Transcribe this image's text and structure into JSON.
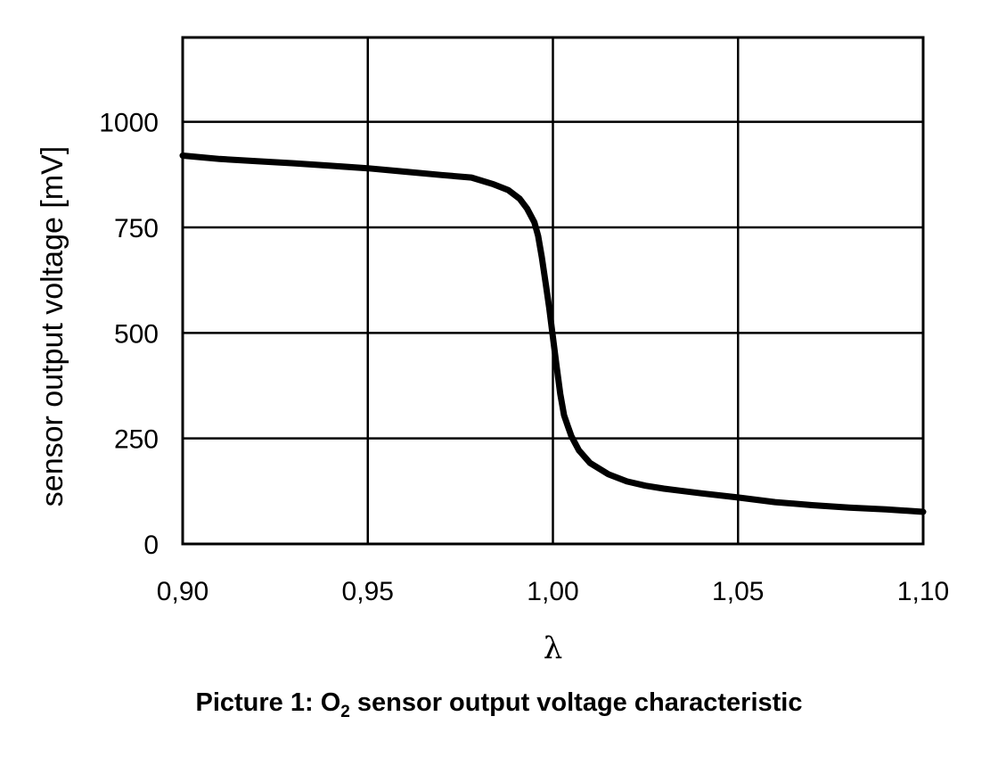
{
  "chart_data": {
    "type": "line",
    "xlabel": "λ",
    "ylabel": "sensor output voltage [mV]",
    "xlim": [
      0.9,
      1.1
    ],
    "ylim": [
      0,
      1200
    ],
    "x_ticks": [
      0.9,
      0.95,
      1.0,
      1.05,
      1.1
    ],
    "x_tick_labels": [
      "0,90",
      "0,95",
      "1,00",
      "1,05",
      "1,10"
    ],
    "y_ticks": [
      0,
      250,
      500,
      750,
      1000
    ],
    "y_tick_labels": [
      "0",
      "250",
      "500",
      "750",
      "1000"
    ],
    "grid": true,
    "series": [
      {
        "color": "#000000",
        "x": [
          0.9,
          0.91,
          0.92,
          0.93,
          0.94,
          0.95,
          0.96,
          0.97,
          0.978,
          0.984,
          0.988,
          0.991,
          0.993,
          0.995,
          0.996,
          0.997,
          0.998,
          0.999,
          1.0,
          1.001,
          1.002,
          1.003,
          1.004,
          1.005,
          1.007,
          1.01,
          1.015,
          1.02,
          1.025,
          1.03,
          1.04,
          1.05,
          1.06,
          1.07,
          1.08,
          1.09,
          1.1
        ],
        "y": [
          920,
          912,
          907,
          902,
          896,
          890,
          882,
          874,
          868,
          852,
          838,
          818,
          795,
          762,
          730,
          680,
          620,
          560,
          490,
          420,
          355,
          305,
          280,
          255,
          222,
          192,
          165,
          148,
          138,
          131,
          120,
          110,
          99,
          92,
          86,
          82,
          76
        ]
      }
    ]
  },
  "caption": {
    "prefix": "Picture 1: O",
    "subscript": "2",
    "suffix": " sensor output voltage characteristic"
  }
}
